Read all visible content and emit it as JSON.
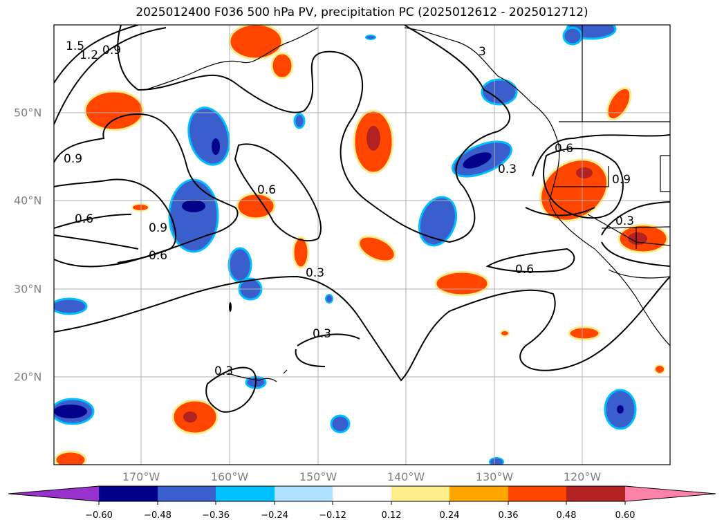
{
  "title": "2025012400 F036 500 hPa PV, precipitation PC (2025012612 - 2025012712)",
  "map": {
    "lon_labels": [
      "170°W",
      "160°W",
      "150°W",
      "140°W",
      "130°W",
      "120°W"
    ],
    "lat_labels": [
      "50°N",
      "40°N",
      "30°N",
      "20°N"
    ],
    "contour_labels": [
      "1.5",
      "1.2",
      "0.9",
      "0.9",
      "0.6",
      "0.9",
      "0.6",
      "0.6",
      "0.3",
      "0.3",
      "0.3",
      "0.3",
      "0.6",
      "0.6",
      "0.9",
      "0.3",
      "3"
    ]
  },
  "colorbar": {
    "ticks": [
      "−0.60",
      "−0.48",
      "−0.36",
      "−0.24",
      "−0.12",
      "0.12",
      "0.24",
      "0.36",
      "0.48",
      "0.60"
    ],
    "colors": [
      "#9932CC",
      "#00008B",
      "#3A5FCD",
      "#00BFFF",
      "#B0E2FF",
      "#FFFFFF",
      "#FFEC8B",
      "#FFA500",
      "#FF4500",
      "#B22222",
      "#FF82AB"
    ]
  }
}
